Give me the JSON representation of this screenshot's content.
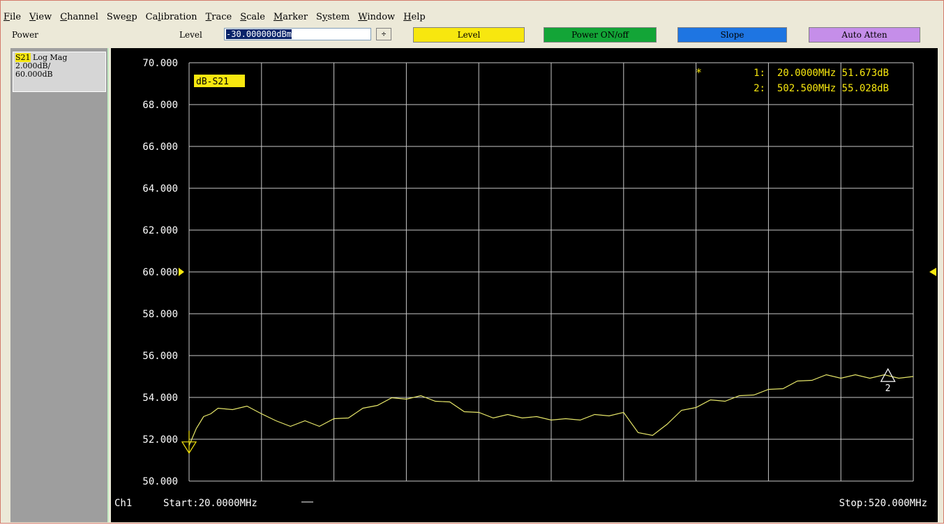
{
  "menu": [
    {
      "label": "File",
      "accel": "F",
      "rest": "ile"
    },
    {
      "label": "View",
      "accel": "V",
      "rest": "iew"
    },
    {
      "label": "Channel",
      "accel": "C",
      "rest": "hannel"
    },
    {
      "label": "Sweep",
      "pre": "Swe",
      "accel": "e",
      "rest": "p"
    },
    {
      "label": "Calibration",
      "pre": "Ca",
      "accel": "l",
      "rest": "ibration"
    },
    {
      "label": "Trace",
      "accel": "T",
      "rest": "race"
    },
    {
      "label": "Scale",
      "accel": "S",
      "rest": "cale"
    },
    {
      "label": "Marker",
      "accel": "M",
      "rest": "arker"
    },
    {
      "label": "System",
      "pre": "S",
      "accel": "y",
      "rest": "stem"
    },
    {
      "label": "Window",
      "accel": "W",
      "rest": "indow"
    },
    {
      "label": "Help",
      "accel": "H",
      "rest": "elp"
    }
  ],
  "toolbar": {
    "power_label": "Power",
    "level_label": "Level",
    "level_value": "-30.000000dBm",
    "stepper_glyph": "÷",
    "level_button": "Level",
    "power_button": "Power ON/off",
    "slope_button": "Slope",
    "atten_button": "Auto Atten"
  },
  "trace_panel": {
    "param": "S21",
    "format": "Log Mag",
    "scale": "2.000dB/",
    "ref": "60.000dB"
  },
  "colors": {
    "trace": "#e6e669",
    "grid": "#c8c8c8",
    "marker_yellow": "#f7e70f",
    "text_white": "#ffffff",
    "level_button": "#f7e70f",
    "power_button": "#13a537",
    "slope_button": "#1e75e2",
    "atten_button": "#c58ee9"
  },
  "chart_data": {
    "type": "line",
    "title": "",
    "trace_label": "dB-S21",
    "xlabel": "",
    "ylabel": "",
    "ylim": [
      50,
      70
    ],
    "xlim": [
      20,
      520
    ],
    "x_unit": "MHz",
    "y_ticks": [
      "70.000",
      "68.000",
      "66.000",
      "64.000",
      "62.000",
      "60.000",
      "58.000",
      "56.000",
      "54.000",
      "52.000",
      "50.000"
    ],
    "reference_level": 60,
    "grid": true,
    "channel": "Ch1",
    "start_label": "Start:20.0000MHz",
    "stop_label": "Stop:520.000MHz",
    "markers": [
      {
        "id": "1",
        "active": true,
        "text": "1:  20.0000MHz 51.673dB",
        "x": 20,
        "y": 51.673
      },
      {
        "id": "2",
        "active": false,
        "text": "2:  502.500MHz 55.028dB",
        "x": 502.5,
        "y": 55.028
      }
    ],
    "series": [
      {
        "x": [
          20,
          25,
          30,
          35,
          40,
          50,
          60,
          70,
          80,
          90,
          100,
          110,
          120,
          130,
          140,
          150,
          160,
          170,
          180,
          190,
          200,
          210,
          220,
          230,
          240,
          250,
          260,
          270,
          280,
          290,
          300,
          310,
          320,
          330,
          340,
          350,
          360,
          370,
          380,
          390,
          400,
          410,
          420,
          430,
          440,
          450,
          460,
          470,
          480,
          490,
          500,
          510,
          520
        ],
        "y": [
          51.7,
          52.6,
          53.0,
          53.3,
          53.4,
          53.5,
          53.5,
          53.3,
          52.8,
          52.7,
          52.8,
          52.7,
          52.9,
          53.1,
          53.4,
          53.7,
          53.9,
          54.0,
          54.0,
          53.9,
          53.7,
          53.4,
          53.2,
          53.1,
          53.1,
          53.1,
          53.0,
          53.0,
          52.9,
          53.0,
          53.1,
          53.2,
          53.2,
          52.4,
          52.1,
          52.8,
          53.3,
          53.6,
          53.8,
          53.9,
          54.0,
          54.2,
          54.3,
          54.5,
          54.7,
          54.9,
          55.0,
          55.0,
          55.0,
          55.0,
          55.0,
          55.0,
          55.0
        ]
      }
    ]
  }
}
